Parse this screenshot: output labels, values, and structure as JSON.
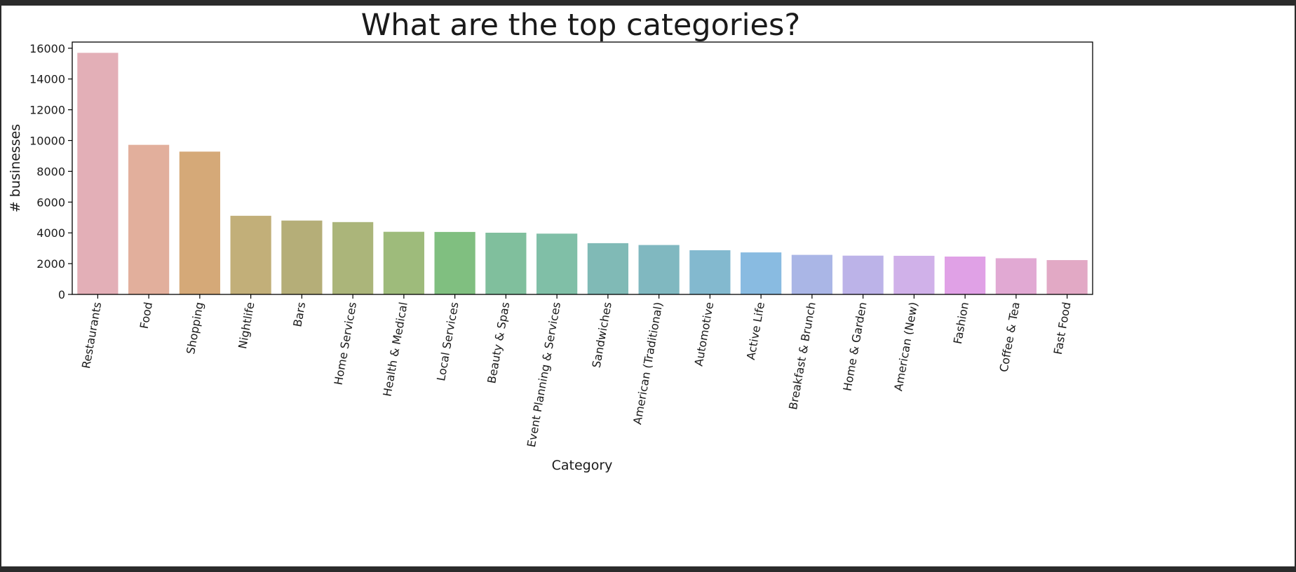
{
  "chart_data": {
    "type": "bar",
    "title": "What are the top categories?",
    "xlabel": "Category",
    "ylabel": "# businesses",
    "ylim": [
      0,
      16400
    ],
    "yticks": [
      0,
      2000,
      4000,
      6000,
      8000,
      10000,
      12000,
      14000,
      16000
    ],
    "grid": false,
    "legend": "none",
    "categories": [
      "Restaurants",
      "Food",
      "Shopping",
      "Nightlife",
      "Bars",
      "Home Services",
      "Health & Medical",
      "Local Services",
      "Beauty & Spas",
      "Event Planning & Services",
      "Sandwiches",
      "American (Traditional)",
      "Automotive",
      "Active Life",
      "Breakfast & Brunch",
      "Home & Garden",
      "American (New)",
      "Fashion",
      "Coffee & Tea",
      "Fast Food"
    ],
    "values": [
      15700,
      9720,
      9280,
      5110,
      4800,
      4700,
      4070,
      4060,
      4010,
      3950,
      3330,
      3210,
      2870,
      2730,
      2570,
      2520,
      2510,
      2460,
      2350,
      2230
    ],
    "colors": [
      "#e3afb7",
      "#e2af9c",
      "#d5a978",
      "#c2af79",
      "#b5ae78",
      "#abb57a",
      "#9ebb7b",
      "#80bf80",
      "#80bf9d",
      "#80bfa7",
      "#80bab6",
      "#80b8c0",
      "#83b9cf",
      "#89bbe1",
      "#aab6e6",
      "#bcb3e8",
      "#d0b1e9",
      "#e0a1e6",
      "#e1a9d3",
      "#e2a9c5"
    ]
  }
}
